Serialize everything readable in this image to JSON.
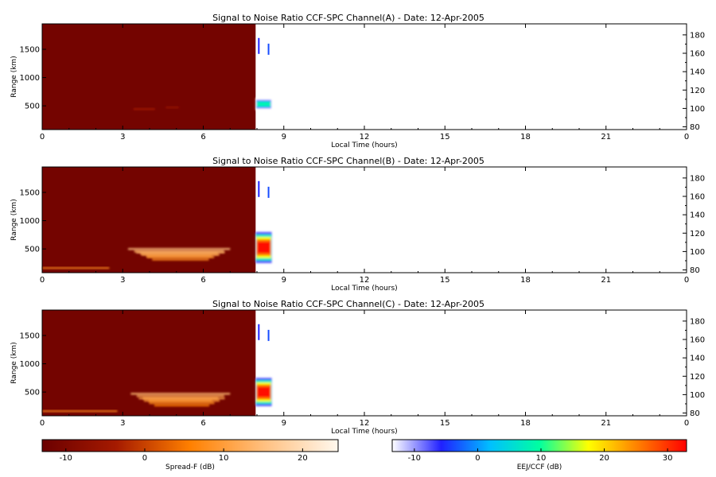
{
  "chart_data": {
    "type": "heatmap",
    "panels": [
      {
        "title": "Signal to Noise Ratio CCF-SPC Channel(A) - Date: 12-Apr-2005",
        "xlabel": "Local Time (hours)",
        "ylabel": "Range (km)",
        "xlim": [
          0,
          24
        ],
        "ylim": [
          80,
          1950
        ],
        "xticks": [
          "0",
          "3",
          "6",
          "9",
          "12",
          "15",
          "18",
          "21",
          "0"
        ],
        "yticks": [
          500,
          1000,
          1500
        ],
        "y2lim": [
          77,
          192
        ],
        "y2ticks": [
          80,
          100,
          120,
          140,
          160,
          180
        ],
        "spread_f_coverage_hours": [
          0,
          7.95
        ],
        "spread_f_features": [
          {
            "t0": 3.4,
            "t1": 4.2,
            "range_km": 400,
            "level_db": -4
          },
          {
            "t0": 4.6,
            "t1": 5.1,
            "range_km": 430,
            "level_db": -6
          }
        ],
        "eej_columns": [
          {
            "t0": 7.95,
            "t1": 8.55,
            "range0_km": 420,
            "range1_km": 640,
            "peak_db": 8
          }
        ]
      },
      {
        "title": "Signal to Noise Ratio CCF-SPC Channel(B) - Date: 12-Apr-2005",
        "xlabel": "Local Time (hours)",
        "ylabel": "Range (km)",
        "xlim": [
          0,
          24
        ],
        "ylim": [
          80,
          1950
        ],
        "xticks": [
          "0",
          "3",
          "6",
          "9",
          "12",
          "15",
          "18",
          "21",
          "0"
        ],
        "yticks": [
          500,
          1000,
          1500
        ],
        "y2lim": [
          77,
          192
        ],
        "y2ticks": [
          80,
          100,
          120,
          140,
          160,
          180
        ],
        "spread_f_coverage_hours": [
          0,
          7.95
        ],
        "spread_f_features": [
          {
            "t0": 3.2,
            "t1": 7.0,
            "range_km": 430,
            "level_db": 16
          },
          {
            "t0": 3.5,
            "t1": 6.8,
            "range_km": 370,
            "level_db": 14
          },
          {
            "t0": 0.0,
            "t1": 2.5,
            "range_km": 120,
            "level_db": 8
          }
        ],
        "eej_columns": [
          {
            "t0": 7.95,
            "t1": 8.55,
            "range0_km": 250,
            "range1_km": 800,
            "peak_db": 32
          }
        ]
      },
      {
        "title": "Signal to Noise Ratio CCF-SPC Channel(C) - Date: 12-Apr-2005",
        "xlabel": "Local Time (hours)",
        "ylabel": "Range (km)",
        "xlim": [
          0,
          24
        ],
        "ylim": [
          80,
          1950
        ],
        "xticks": [
          "0",
          "3",
          "6",
          "9",
          "12",
          "15",
          "18",
          "21",
          "0"
        ],
        "yticks": [
          500,
          1000,
          1500
        ],
        "y2lim": [
          77,
          192
        ],
        "y2ticks": [
          80,
          100,
          120,
          140,
          160,
          180
        ],
        "spread_f_coverage_hours": [
          0,
          7.95
        ],
        "spread_f_features": [
          {
            "t0": 3.3,
            "t1": 7.0,
            "range_km": 400,
            "level_db": 15
          },
          {
            "t0": 3.6,
            "t1": 6.8,
            "range_km": 320,
            "level_db": 12
          },
          {
            "t0": 0.0,
            "t1": 2.8,
            "range_km": 120,
            "level_db": 8
          }
        ],
        "eej_columns": [
          {
            "t0": 7.95,
            "t1": 8.55,
            "range0_km": 250,
            "range1_km": 750,
            "peak_db": 32
          }
        ]
      }
    ],
    "colorbars": [
      {
        "label": "Spread-F (dB)",
        "ticks": [
          "-10",
          "0",
          "10",
          "20"
        ],
        "range_db": [
          -14,
          26
        ],
        "colors": [
          "#6b0000",
          "#a51a00",
          "#ff8000",
          "#ffc080",
          "#fff8ee"
        ]
      },
      {
        "label": "EEJ/CCF (dB)",
        "ticks": [
          "-10",
          "0",
          "10",
          "20",
          "30"
        ],
        "range_db": [
          -14,
          33
        ],
        "colors": [
          "#ffffff",
          "#2020ff",
          "#00c0ff",
          "#00ffa0",
          "#ffff00",
          "#ff8000",
          "#ff0000"
        ]
      }
    ]
  }
}
